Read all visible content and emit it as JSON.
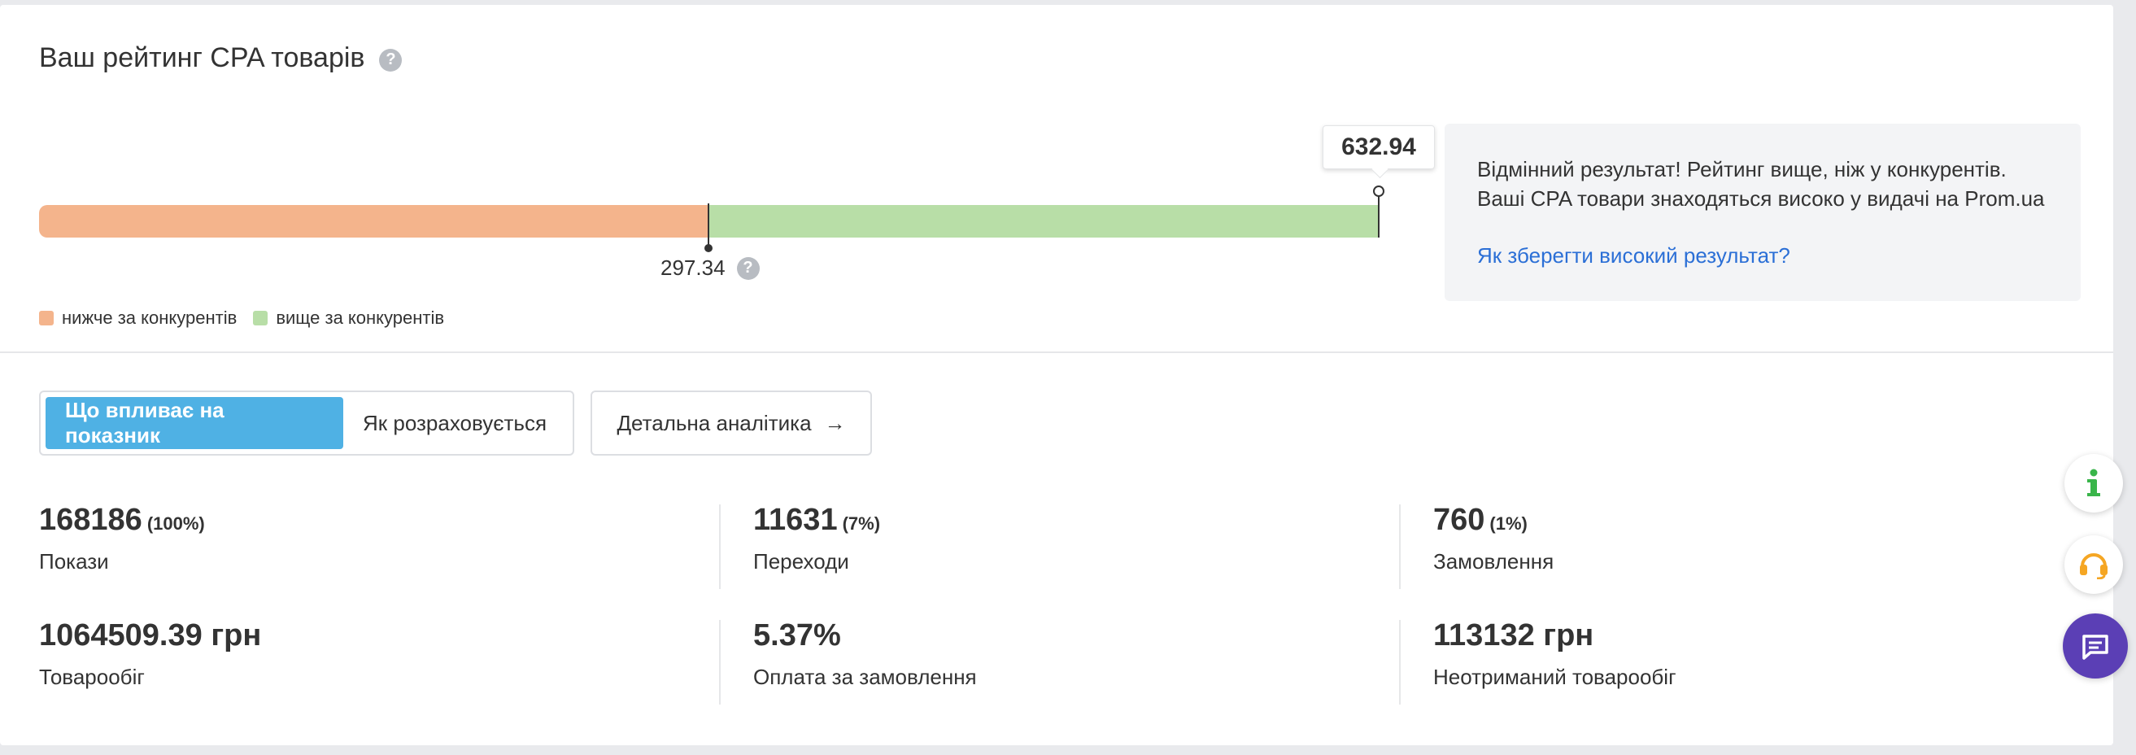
{
  "header": {
    "title": "Ваш рейтинг CPA товарів",
    "help_glyph": "?"
  },
  "rating": {
    "my_value": "632.94",
    "average_value": "297.34",
    "average_help_glyph": "?",
    "scale_fraction_low": 0.5,
    "colors": {
      "below": "#f4b48c",
      "above": "#b8dea7"
    }
  },
  "legend": [
    {
      "label": "нижче за конкурентів",
      "color": "#f4b48c"
    },
    {
      "label": "вище за конкурентів",
      "color": "#b8dea7"
    }
  ],
  "info_box": {
    "line1": "Відмінний результат! Рейтинг вище, ніж у конкурентів.",
    "line2": "Ваші CPA товари знаходяться високо у видачі на Prom.ua",
    "link": "Як зберегти високий результат?"
  },
  "tabs": [
    {
      "label": "Що впливає на показник",
      "active": true
    },
    {
      "label": "Як розраховується",
      "active": false
    }
  ],
  "analytics_button": {
    "label": "Детальна аналітика",
    "arrow": "→"
  },
  "stats": {
    "impressions": {
      "value": "168186",
      "pct": "(100%)",
      "label": "Покази"
    },
    "clicks": {
      "value": "11631",
      "pct": "(7%)",
      "label": "Переходи"
    },
    "orders": {
      "value": "760",
      "pct": "(1%)",
      "label": "Замовлення"
    },
    "turnover": {
      "value": "1064509.39 грн",
      "label": "Товарообіг"
    },
    "order_payment": {
      "value": "5.37%",
      "label": "Оплата за замовлення"
    },
    "lost_turnover": {
      "value": "113132 грн",
      "label": "Неотриманий товарообіг"
    }
  },
  "side_buttons": [
    {
      "icon": "info-icon",
      "color": "#39b54a"
    },
    {
      "icon": "headset-icon",
      "color": "#f5a623"
    },
    {
      "icon": "chat-icon",
      "color": "#5b3fb5"
    }
  ]
}
